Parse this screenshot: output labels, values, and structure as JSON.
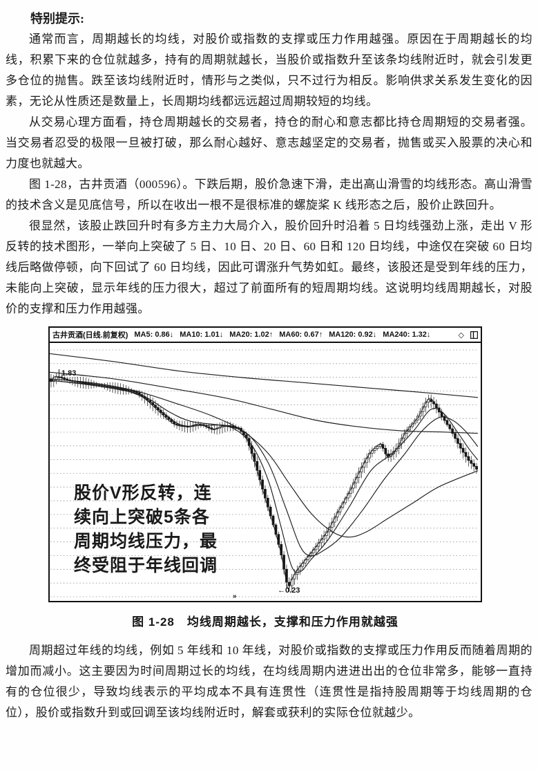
{
  "page": {
    "heading": "特别提示:",
    "paragraphs": [
      "通常而言，周期越长的均线，对股价或指数的支撑或压力作用越强。原因在于周期越长的均线，积累下来的仓位就越多，持有的周期就越长，当股价或指数升至该条均线附近时，就会引发更多仓位的抛售。跌至该均线附近时，情形与之类似，只不过行为相反。影响供求关系发生变化的因素，无论从性质还是数量上，长周期均线都远远超过周期较短的均线。",
      "从交易心理方面看，持仓周期越长的交易者，持仓的耐心和意志都比持仓周期短的交易者强。当交易者忍受的极限一旦被打破，那么耐心越好、意志越坚定的交易者，抛售或买入股票的决心和力度也就越大。",
      "图 1-28，古井贡酒（000596）。下跌后期，股价急速下滑，走出高山滑雪的均线形态。高山滑雪的技术含义是见底信号，所以在收出一根不是很标准的螺旋桨 K 线形态之后，股价止跌回升。",
      "很显然，该股止跌回升时有多方主力大局介入，股价回升时沿着 5 日均线强劲上涨，走出 V 形反转的技术图形，一举向上突破了 5 日、10 日、20 日、60 日和 120 日均线，中途仅在突破 60 日均线后略做停顿，向下回试了 60 日均线，因此可谓涨升气势如虹。最终，该股还是受到年线的压力，未能向上突破，显示年线的压力很大，超过了前面所有的短周期均线。这说明均线周期越长，对股价的支撑和压力作用越强。"
    ],
    "caption": "图 1-28　均线周期越长，支撑和压力作用就越强",
    "closing_paragraph": "周期超过年线的均线，例如 5 年线和 10 年线，对股价或指数的支撑或压力作用反而随着周期的增加而减小。这主要因为时间周期过长的均线，在均线周期内进进出出的仓位非常多，能够一直持有的仓位很少，导致均线表示的平均成本不具有连贯性（连贯性是指持股周期等于均线周期的仓位），股价或指数升到或回调至该均线附近时，解套或获利的实际仓位就越少。"
  },
  "chart": {
    "title": "古井贡酒(日线.前复权)",
    "ma_readings": [
      "MA5: 0.86↓",
      "MA10: 1.01↓",
      "MA20: 1.02↑",
      "MA60: 0.67↑",
      "MA120: 0.92↓",
      "MA240: 1.32↓"
    ],
    "diamond_icon": "◇",
    "annotation_lines": [
      "股价V形反转，连",
      "续向上突破5条各",
      "周期均线压力，最",
      "终受阻于年线回调"
    ],
    "high_label": "1.83",
    "low_label": "←0.23",
    "bottom_marker": "»"
  },
  "chart_data": {
    "type": "line",
    "style": "candlestick-with-moving-averages",
    "title": "古井贡酒(000596) 日线·前复权",
    "grid": {
      "horizontal_dotted_lines": 19
    },
    "ylim": [
      0.14,
      2.08
    ],
    "x_unit": "fraction-of-visible-range",
    "key_points": {
      "left_high": 1.83,
      "bottom_low": 0.23
    },
    "candle_count": 160,
    "series": [
      {
        "name": "price",
        "waypoints": [
          [
            0.0,
            1.79
          ],
          [
            0.015,
            1.83
          ],
          [
            0.04,
            1.8
          ],
          [
            0.08,
            1.78
          ],
          [
            0.12,
            1.76
          ],
          [
            0.16,
            1.74
          ],
          [
            0.2,
            1.71
          ],
          [
            0.23,
            1.64
          ],
          [
            0.26,
            1.55
          ],
          [
            0.29,
            1.47
          ],
          [
            0.32,
            1.45
          ],
          [
            0.35,
            1.47
          ],
          [
            0.38,
            1.43
          ],
          [
            0.41,
            1.46
          ],
          [
            0.44,
            1.44
          ],
          [
            0.46,
            1.36
          ],
          [
            0.48,
            1.17
          ],
          [
            0.495,
            1.0
          ],
          [
            0.51,
            0.84
          ],
          [
            0.525,
            0.68
          ],
          [
            0.54,
            0.5
          ],
          [
            0.55,
            0.33
          ],
          [
            0.557,
            0.23
          ],
          [
            0.565,
            0.3
          ],
          [
            0.58,
            0.38
          ],
          [
            0.6,
            0.46
          ],
          [
            0.625,
            0.56
          ],
          [
            0.65,
            0.67
          ],
          [
            0.675,
            0.82
          ],
          [
            0.7,
            0.96
          ],
          [
            0.725,
            1.12
          ],
          [
            0.75,
            1.26
          ],
          [
            0.775,
            1.32
          ],
          [
            0.79,
            1.22
          ],
          [
            0.81,
            1.28
          ],
          [
            0.83,
            1.4
          ],
          [
            0.86,
            1.52
          ],
          [
            0.885,
            1.66
          ],
          [
            0.9,
            1.62
          ],
          [
            0.92,
            1.52
          ],
          [
            0.94,
            1.42
          ],
          [
            0.96,
            1.3
          ],
          [
            0.98,
            1.2
          ],
          [
            1.0,
            1.13
          ]
        ]
      },
      {
        "name": "MA10",
        "waypoints": [
          [
            0,
            1.8
          ],
          [
            0.06,
            1.78
          ],
          [
            0.12,
            1.76
          ],
          [
            0.18,
            1.72
          ],
          [
            0.23,
            1.65
          ],
          [
            0.27,
            1.54
          ],
          [
            0.31,
            1.46
          ],
          [
            0.36,
            1.46
          ],
          [
            0.42,
            1.45
          ],
          [
            0.47,
            1.32
          ],
          [
            0.51,
            1.05
          ],
          [
            0.54,
            0.7
          ],
          [
            0.565,
            0.4
          ],
          [
            0.585,
            0.36
          ],
          [
            0.61,
            0.45
          ],
          [
            0.65,
            0.6
          ],
          [
            0.7,
            0.85
          ],
          [
            0.75,
            1.12
          ],
          [
            0.8,
            1.25
          ],
          [
            0.85,
            1.42
          ],
          [
            0.89,
            1.58
          ],
          [
            0.92,
            1.55
          ],
          [
            0.95,
            1.42
          ],
          [
            0.98,
            1.28
          ],
          [
            1.0,
            1.2
          ]
        ]
      },
      {
        "name": "MA20",
        "waypoints": [
          [
            0,
            1.8
          ],
          [
            0.08,
            1.77
          ],
          [
            0.16,
            1.73
          ],
          [
            0.22,
            1.68
          ],
          [
            0.28,
            1.56
          ],
          [
            0.33,
            1.49
          ],
          [
            0.4,
            1.46
          ],
          [
            0.46,
            1.4
          ],
          [
            0.51,
            1.18
          ],
          [
            0.55,
            0.85
          ],
          [
            0.585,
            0.55
          ],
          [
            0.61,
            0.48
          ],
          [
            0.64,
            0.52
          ],
          [
            0.68,
            0.62
          ],
          [
            0.73,
            0.82
          ],
          [
            0.78,
            1.05
          ],
          [
            0.83,
            1.25
          ],
          [
            0.87,
            1.42
          ],
          [
            0.91,
            1.52
          ],
          [
            0.94,
            1.5
          ],
          [
            0.97,
            1.42
          ],
          [
            1.0,
            1.3
          ]
        ]
      },
      {
        "name": "MA60",
        "waypoints": [
          [
            0,
            1.81
          ],
          [
            0.1,
            1.78
          ],
          [
            0.2,
            1.72
          ],
          [
            0.3,
            1.62
          ],
          [
            0.38,
            1.53
          ],
          [
            0.45,
            1.42
          ],
          [
            0.51,
            1.25
          ],
          [
            0.56,
            1.02
          ],
          [
            0.61,
            0.8
          ],
          [
            0.66,
            0.66
          ],
          [
            0.7,
            0.62
          ],
          [
            0.74,
            0.66
          ],
          [
            0.79,
            0.76
          ],
          [
            0.85,
            0.88
          ],
          [
            0.91,
            1.0
          ],
          [
            1.0,
            1.12
          ]
        ]
      },
      {
        "name": "MA120",
        "waypoints": [
          [
            0,
            1.86
          ],
          [
            0.15,
            1.81
          ],
          [
            0.3,
            1.73
          ],
          [
            0.42,
            1.66
          ],
          [
            0.52,
            1.58
          ],
          [
            0.62,
            1.5
          ],
          [
            0.72,
            1.45
          ],
          [
            0.82,
            1.42
          ],
          [
            0.92,
            1.41
          ],
          [
            1.0,
            1.4
          ]
        ]
      },
      {
        "name": "MA240",
        "waypoints": [
          [
            0,
            2.0
          ],
          [
            0.15,
            1.94
          ],
          [
            0.3,
            1.87
          ],
          [
            0.45,
            1.82
          ],
          [
            0.6,
            1.78
          ],
          [
            0.75,
            1.74
          ],
          [
            0.9,
            1.7
          ],
          [
            1.0,
            1.67
          ]
        ]
      }
    ]
  }
}
